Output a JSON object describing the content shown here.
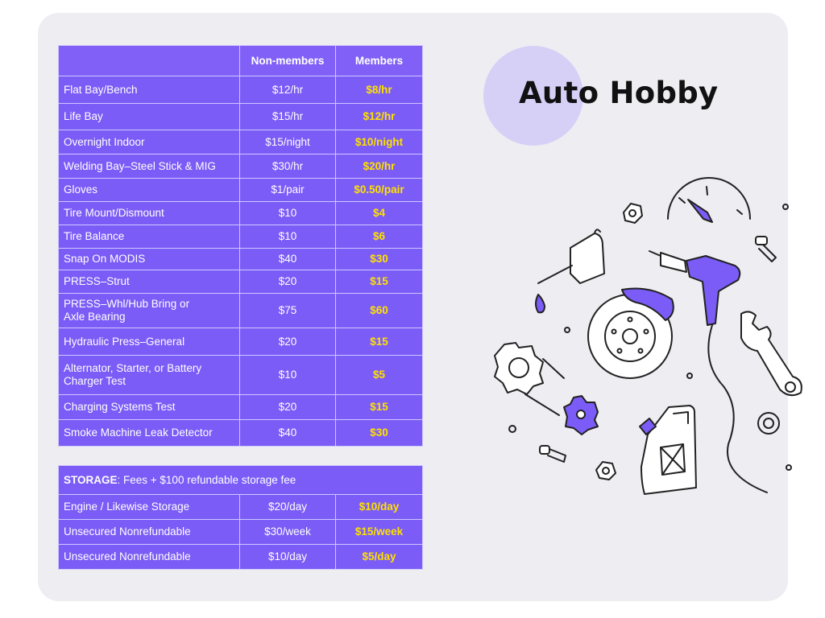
{
  "title": "Auto Hobby",
  "colors": {
    "accent": "#7b5cf6",
    "member_price": "#ffe100",
    "background": "#ededf2"
  },
  "rates": {
    "columns": [
      "",
      "Non-members",
      "Members"
    ],
    "rows": [
      {
        "name": "Flat Bay/Bench",
        "non": "$12/hr",
        "mem": "$8/hr"
      },
      {
        "name": "Life Bay",
        "non": "$15/hr",
        "mem": "$12/hr"
      },
      {
        "name": "Overnight Indoor",
        "non": "$15/night",
        "mem": "$10/night"
      },
      {
        "name": "Welding Bay–Steel Stick & MIG",
        "non": "$30/hr",
        "mem": "$20/hr"
      },
      {
        "name": "Gloves",
        "non": "$1/pair",
        "mem": "$0.50/pair"
      },
      {
        "name": "Tire Mount/Dismount",
        "non": "$10",
        "mem": "$4"
      },
      {
        "name": "Tire Balance",
        "non": "$10",
        "mem": "$6"
      },
      {
        "name": "Snap On MODIS",
        "non": "$40",
        "mem": "$30"
      },
      {
        "name": "PRESS–Strut",
        "non": "$20",
        "mem": "$15"
      },
      {
        "name": "PRESS–Whl/Hub Bring or",
        "name2": "Axle Bearing",
        "non": "$75",
        "mem": "$60"
      },
      {
        "name": "Hydraulic Press–General",
        "non": "$20",
        "mem": "$15"
      },
      {
        "name": "Alternator, Starter, or Battery",
        "name2": "Charger Test",
        "non": "$10",
        "mem": "$5"
      },
      {
        "name": "Charging Systems Test",
        "non": "$20",
        "mem": "$15"
      },
      {
        "name": "Smoke Machine Leak Detector",
        "non": "$40",
        "mem": "$30"
      }
    ]
  },
  "storage": {
    "label": "STORAGE",
    "note": ": Fees + $100 refundable storage fee",
    "rows": [
      {
        "name": "Engine / Likewise Storage",
        "non": "$20/day",
        "mem": "$10/day"
      },
      {
        "name": "Unsecured Nonrefundable",
        "non": "$30/week",
        "mem": "$15/week"
      },
      {
        "name": "Unsecured Nonrefundable",
        "non": "$10/day",
        "mem": "$5/day"
      }
    ]
  },
  "illustration": {
    "icons": [
      "gauge-icon",
      "oil-can-icon",
      "brake-disc-icon",
      "drill-icon",
      "wrench-icon",
      "gear-icon",
      "jerry-can-icon",
      "bolt-icon",
      "nut-icon",
      "washer-icon"
    ]
  }
}
